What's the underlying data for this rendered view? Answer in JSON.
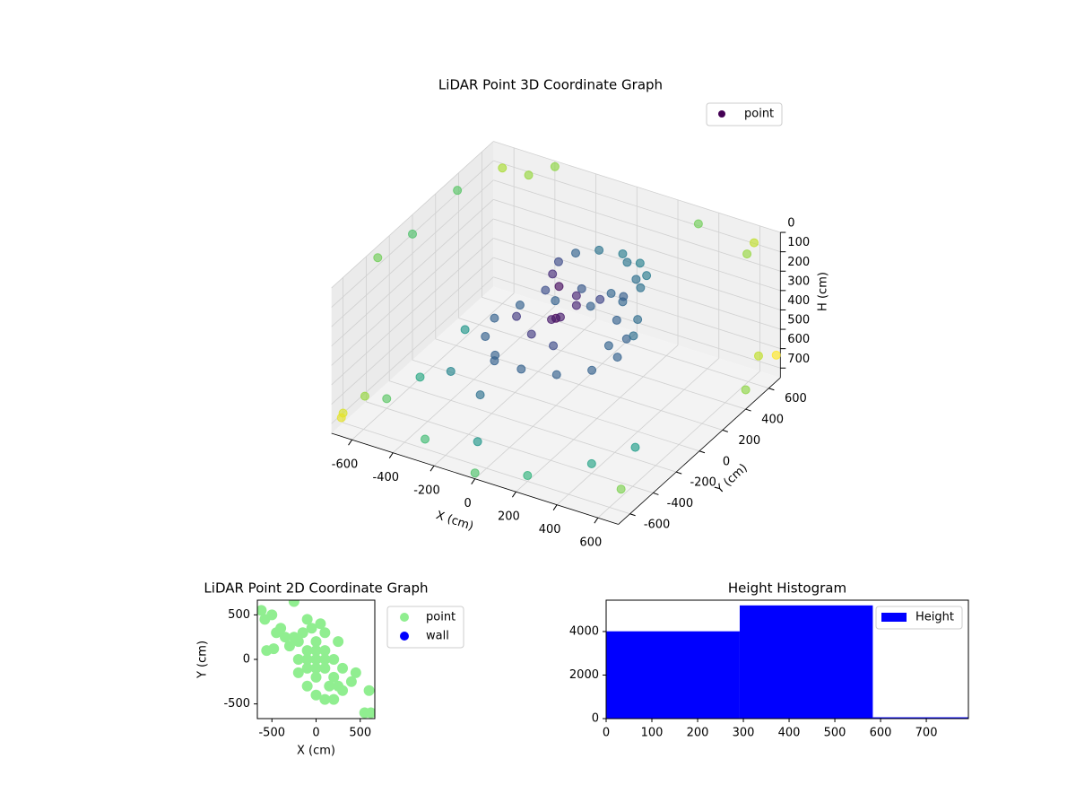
{
  "chart_data": [
    {
      "type": "scatter3d",
      "title": "LiDAR Point 3D Coordinate Graph",
      "xlabel": "X (cm)",
      "ylabel": "Y (cm)",
      "zlabel": "H (cm)",
      "xlim": [
        -700,
        700
      ],
      "ylim": [
        -700,
        700
      ],
      "zlim": [
        0,
        750
      ],
      "zinvert": true,
      "xticks": [
        -600,
        -400,
        -200,
        0,
        200,
        400,
        600
      ],
      "yticks": [
        -600,
        -400,
        -200,
        0,
        200,
        400,
        600
      ],
      "zticks": [
        0,
        100,
        200,
        300,
        400,
        500,
        600,
        700
      ],
      "grid": true,
      "legend": "upper right",
      "colormap": "viridis",
      "series": [
        {
          "name": "point",
          "color": "#440154",
          "x": [
            300,
            260,
            150,
            0,
            -150,
            -260,
            -300,
            -260,
            -150,
            0,
            150,
            260,
            350,
            300,
            175,
            100,
            -25,
            -150,
            -150,
            -25,
            100,
            300,
            250,
            150,
            300,
            273,
            200,
            100,
            0,
            -73,
            -100,
            -73,
            0,
            100,
            200,
            273,
            0,
            50,
            -50,
            100,
            -100,
            200,
            400,
            500,
            -300,
            600,
            0,
            -600,
            -650,
            -500,
            -700,
            -400,
            600,
            650,
            300,
            -700,
            -650,
            -600,
            -700,
            -550,
            -680,
            650,
            700,
            680,
            -400,
            -300,
            -500,
            -200
          ],
          "y": [
            0,
            150,
            260,
            300,
            260,
            150,
            0,
            -150,
            -260,
            -300,
            -260,
            -150,
            50,
            175,
            267,
            300,
            267,
            175,
            -75,
            -167,
            -200,
            -75,
            250,
            350,
            200,
            300,
            373,
            400,
            373,
            300,
            200,
            100,
            27,
            0,
            27,
            100,
            0,
            -50,
            50,
            0,
            -500,
            -600,
            -400,
            -200,
            -600,
            -500,
            -700,
            600,
            300,
            650,
            0,
            700,
            650,
            500,
            700,
            -300,
            -500,
            -400,
            -600,
            -200,
            -650,
            600,
            400,
            700,
            -200,
            0,
            100,
            -300
          ],
          "z": [
            400,
            400,
            400,
            400,
            400,
            400,
            400,
            400,
            400,
            400,
            400,
            400,
            300,
            300,
            300,
            300,
            300,
            300,
            300,
            300,
            300,
            300,
            150,
            150,
            150,
            150,
            150,
            150,
            150,
            150,
            150,
            150,
            150,
            150,
            150,
            150,
            300,
            250,
            350,
            200,
            700,
            720,
            700,
            690,
            700,
            710,
            720,
            50,
            20,
            80,
            100,
            30,
            60,
            20,
            90,
            60,
            650,
            700,
            700,
            680,
            690,
            600,
            650,
            640,
            600,
            620,
            580,
            600
          ]
        }
      ]
    },
    {
      "type": "scatter",
      "title": "LiDAR Point 2D Coordinate Graph",
      "xlabel": "X (cm)",
      "ylabel": "Y (cm)",
      "xlim": [
        -665,
        665
      ],
      "ylim": [
        -665,
        665
      ],
      "xticks": [
        -500,
        0,
        500
      ],
      "yticks": [
        -500,
        0,
        500
      ],
      "legend": "outside right",
      "series": [
        {
          "name": "point",
          "color": "#90ee90",
          "x": [
            0,
            100,
            -100,
            0,
            0,
            100,
            -100,
            100,
            -100,
            200,
            0,
            -200,
            0,
            200,
            -200,
            150,
            250,
            300,
            100,
            -50,
            -150,
            -250,
            -300,
            -200,
            -100,
            0,
            100,
            200,
            300,
            400,
            450,
            50,
            -100,
            250,
            -350,
            -400,
            -450,
            -500,
            -620,
            -580,
            -560,
            -480,
            600,
            550,
            620,
            -250
          ],
          "y": [
            0,
            0,
            0,
            100,
            -100,
            100,
            100,
            -100,
            -100,
            0,
            200,
            0,
            -200,
            -200,
            200,
            -300,
            -300,
            -100,
            300,
            350,
            300,
            250,
            150,
            -150,
            -300,
            -400,
            -450,
            -450,
            -350,
            -250,
            -150,
            400,
            450,
            200,
            250,
            350,
            300,
            500,
            550,
            450,
            100,
            120,
            -350,
            -600,
            -600,
            650
          ]
        },
        {
          "name": "wall",
          "color": "#0000ff",
          "x": [],
          "y": []
        }
      ]
    },
    {
      "type": "histogram",
      "title": "Height Histogram",
      "name": "Height",
      "color": "#0000ff",
      "bins": [
        0,
        292,
        583,
        875
      ],
      "values": [
        4010,
        5200,
        60
      ],
      "xlim": [
        0,
        792
      ],
      "ylim": [
        0,
        5440
      ],
      "xticks": [
        0,
        100,
        200,
        300,
        400,
        500,
        600,
        700
      ],
      "yticks": [
        0,
        2000,
        4000
      ],
      "legend": "upper right"
    }
  ]
}
